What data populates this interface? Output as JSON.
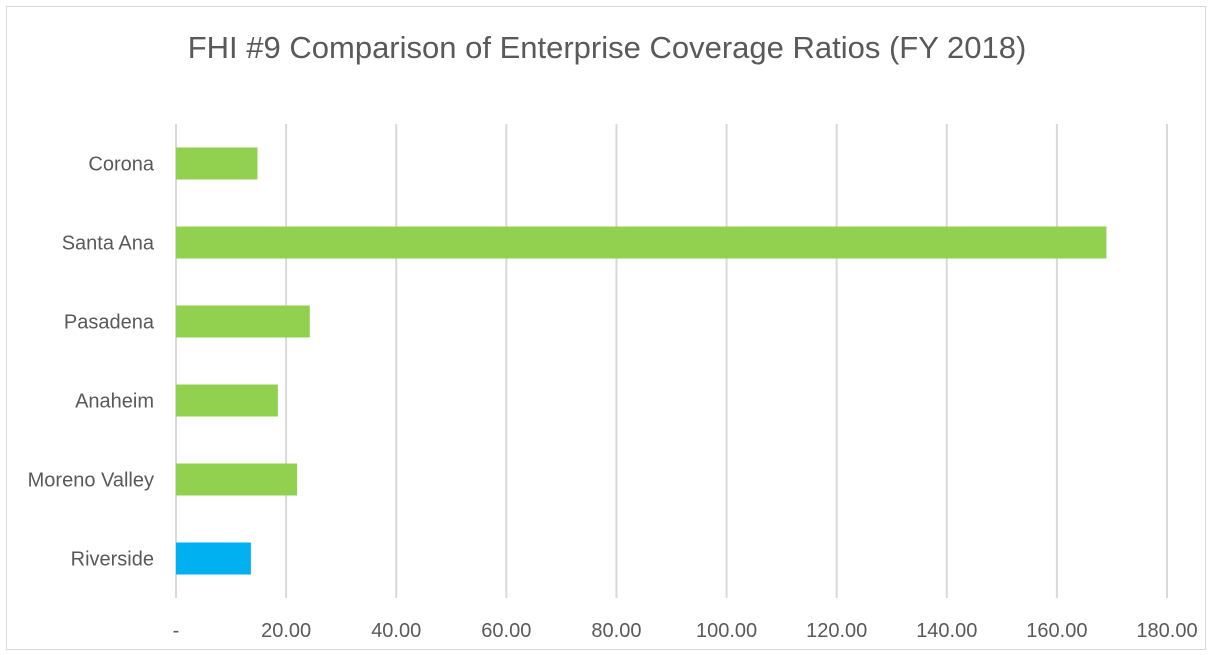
{
  "chart_data": {
    "type": "bar",
    "orientation": "horizontal",
    "title": "FHI #9 Comparison of Enterprise Coverage Ratios (FY 2018)",
    "categories": [
      "Corona",
      "Santa Ana",
      "Pasadena",
      "Anaheim",
      "Moreno Valley",
      "Riverside"
    ],
    "values": [
      14.8,
      169.0,
      24.3,
      18.5,
      22.0,
      13.6
    ],
    "bar_colors": [
      "#92d050",
      "#92d050",
      "#92d050",
      "#92d050",
      "#92d050",
      "#00b0f0"
    ],
    "xlim": [
      0,
      180
    ],
    "x_ticks": [
      "-",
      "20.00",
      "40.00",
      "60.00",
      "80.00",
      "100.00",
      "120.00",
      "140.00",
      "160.00",
      "180.00"
    ],
    "grid": true,
    "legend": false
  }
}
